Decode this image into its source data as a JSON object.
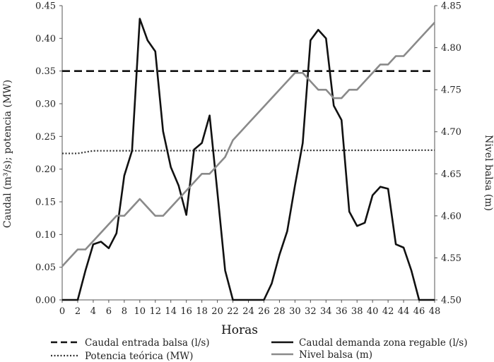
{
  "chart_data": {
    "type": "line",
    "xlabel": "Horas",
    "ylabel_left": "Caudal (m³/s); potencia (MW)",
    "ylabel_right": "Nivel balsa (m)",
    "xlim": [
      0,
      48
    ],
    "ylim_left": [
      0,
      0.45
    ],
    "ylim_right": [
      4.5,
      4.85
    ],
    "x_ticks": [
      "0",
      "2",
      "4",
      "6",
      "8",
      "10",
      "12",
      "14",
      "16",
      "18",
      "20",
      "22",
      "24",
      "26",
      "28",
      "30",
      "32",
      "34",
      "36",
      "38",
      "40",
      "42",
      "44",
      "46",
      "48"
    ],
    "y_left_ticks": [
      "0.00",
      "0.05",
      "0.10",
      "0.15",
      "0.20",
      "0.25",
      "0.30",
      "0.35",
      "0.40",
      "0.45"
    ],
    "y_right_ticks": [
      "4.50",
      "4.55",
      "4.60",
      "4.65",
      "4.70",
      "4.75",
      "4.80",
      "4.85"
    ],
    "legend_position": "bottom",
    "series": [
      {
        "name": "Caudal entrada balsa (l/s)",
        "axis": "left",
        "style": "dashed",
        "color": "#111111",
        "x": [
          0,
          48
        ],
        "y": [
          0.35,
          0.35
        ]
      },
      {
        "name": "Potencia teórica (MW)",
        "axis": "left",
        "style": "dotted",
        "color": "#333333",
        "x": [
          0,
          2,
          3,
          4,
          48
        ],
        "y": [
          0.224,
          0.224,
          0.226,
          0.228,
          0.229
        ]
      },
      {
        "name": "Caudal demanda zona regable (l/s)",
        "axis": "left",
        "style": "solid",
        "color": "#111111",
        "x": [
          0,
          1,
          2,
          3,
          4,
          5,
          6,
          7,
          8,
          9,
          10,
          11,
          12,
          13,
          14,
          15,
          16,
          17,
          18,
          19,
          20,
          21,
          22,
          23,
          24,
          25,
          26,
          27,
          28,
          29,
          30,
          31,
          32,
          33,
          34,
          35,
          36,
          37,
          38,
          39,
          40,
          41,
          42,
          43,
          44,
          45,
          46,
          47,
          48
        ],
        "y": [
          0,
          0,
          0,
          0.045,
          0.085,
          0.089,
          0.079,
          0.102,
          0.19,
          0.228,
          0.43,
          0.397,
          0.38,
          0.258,
          0.203,
          0.175,
          0.13,
          0.23,
          0.24,
          0.282,
          0.165,
          0.045,
          0,
          0,
          0,
          0,
          0,
          0.025,
          0.069,
          0.105,
          0.175,
          0.24,
          0.397,
          0.413,
          0.4,
          0.297,
          0.275,
          0.135,
          0.113,
          0.118,
          0.16,
          0.173,
          0.17,
          0.085,
          0.08,
          0.045,
          0,
          0,
          0
        ]
      },
      {
        "name": "Nivel balsa (m)",
        "axis": "right",
        "style": "solid",
        "color": "#8a8a8a",
        "x": [
          0,
          1,
          2,
          3,
          4,
          5,
          6,
          7,
          8,
          9,
          10,
          11,
          12,
          13,
          14,
          15,
          16,
          17,
          18,
          19,
          20,
          21,
          22,
          23,
          24,
          25,
          26,
          27,
          28,
          29,
          30,
          31,
          32,
          33,
          34,
          35,
          36,
          37,
          38,
          39,
          40,
          41,
          42,
          43,
          44,
          45,
          46,
          47,
          48
        ],
        "y": [
          4.54,
          4.55,
          4.56,
          4.56,
          4.57,
          4.58,
          4.59,
          4.6,
          4.6,
          4.61,
          4.62,
          4.61,
          4.6,
          4.6,
          4.61,
          4.62,
          4.63,
          4.64,
          4.65,
          4.65,
          4.66,
          4.67,
          4.69,
          4.7,
          4.71,
          4.72,
          4.73,
          4.74,
          4.75,
          4.76,
          4.77,
          4.77,
          4.76,
          4.75,
          4.75,
          4.74,
          4.74,
          4.75,
          4.75,
          4.76,
          4.77,
          4.78,
          4.78,
          4.79,
          4.79,
          4.8,
          4.81,
          4.82,
          4.83
        ]
      }
    ]
  }
}
